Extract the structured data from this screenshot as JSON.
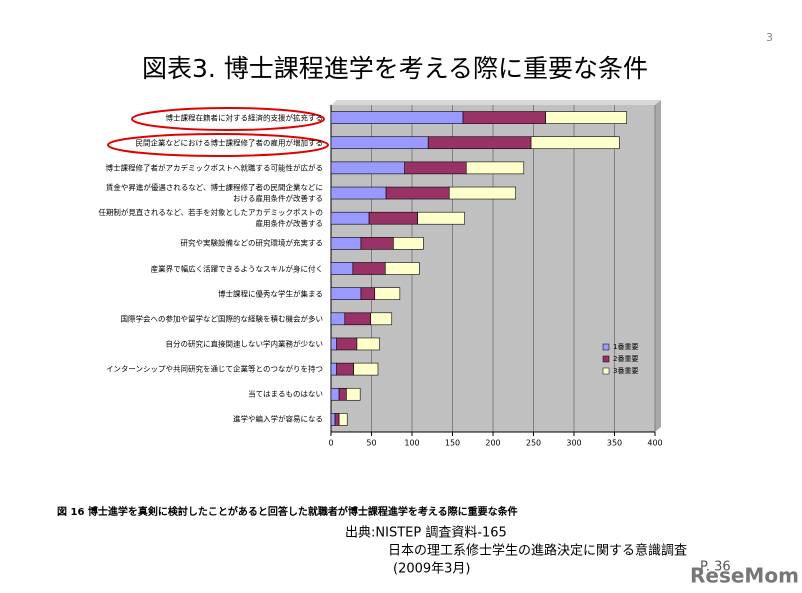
{
  "header": {
    "page_number": "3",
    "title": "図表3. 博士課程進学を考える際に重要な条件"
  },
  "chart_data": {
    "type": "bar",
    "orientation": "horizontal",
    "stacked": true,
    "categories": [
      "博士課程在籍者に対する経済的支援が拡充する",
      "民間企業などにおける博士課程修了者の雇用が増加する",
      "博士課程修了者がアカデミックポストへ就職する可能性が広がる",
      "賃金や昇進が優遇されるなど、博士課程修了者の民間企業などに\nおける雇用条件が改善する",
      "任期制が見直されるなど、若手を対象としたアカデミックポストの\n雇用条件が改善する",
      "研究や実験設備などの研究環境が充実する",
      "産業界で幅広く活躍できるようなスキルが身に付く",
      "博士課程に優秀な学生が集まる",
      "国際学会への参加や留学など国際的な経験を積む機会が多い",
      "自分の研究に直接関連しない学内業務が少ない",
      "インターンシップや共同研究を通じて企業等とのつながりを持つ",
      "当てはまるものはない",
      "進学や編入学が容易になる"
    ],
    "series": [
      {
        "name": "1番重要",
        "color": "#9999ff",
        "values": [
          163,
          120,
          91,
          68,
          47,
          37,
          27,
          37,
          17,
          7,
          7,
          10,
          5
        ]
      },
      {
        "name": "2番重要",
        "color": "#993366",
        "values": [
          102,
          127,
          76,
          78,
          60,
          40,
          40,
          17,
          32,
          25,
          21,
          9,
          5
        ]
      },
      {
        "name": "3番重要",
        "color": "#ffffcc",
        "values": [
          100,
          109,
          71,
          82,
          58,
          37,
          42,
          31,
          26,
          28,
          30,
          17,
          10
        ]
      }
    ],
    "xlim": [
      0,
      400
    ],
    "xticks": [
      0,
      50,
      100,
      150,
      200,
      250,
      300,
      350,
      400
    ],
    "grid": true,
    "legend": "right"
  },
  "caption": "図 16 博士進学を真剣に検討したことがあると回答した就職者が博士課程進学を考える際に重要な条件",
  "source": [
    "出典:NISTEP 調査資料-165",
    "日本の理工系修士学生の進路決定に関する意識調査",
    "(2009年3月)"
  ],
  "page_ref": "P. 36",
  "logo": "ReseMom"
}
